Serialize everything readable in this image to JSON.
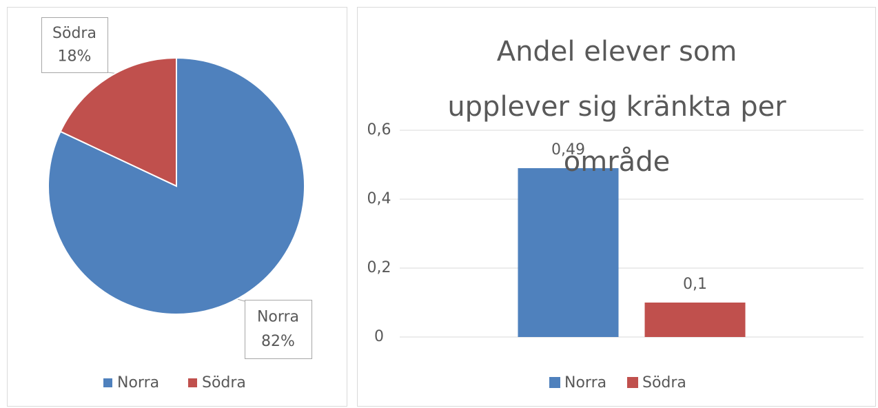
{
  "chart_data": [
    {
      "type": "pie",
      "categories": [
        "Norra",
        "Södra"
      ],
      "values": [
        82,
        18
      ],
      "value_labels": [
        "82%",
        "18%"
      ],
      "colors": [
        "#4f81bd",
        "#c0504d"
      ],
      "legend": "bottom"
    },
    {
      "type": "bar",
      "title": "Andel elever som upplever sig kränkta per område",
      "categories": [
        null
      ],
      "series": [
        {
          "name": "Norra",
          "color": "#4f81bd",
          "values": [
            0.49
          ],
          "value_labels": [
            "0,49"
          ]
        },
        {
          "name": "Södra",
          "color": "#c0504d",
          "values": [
            0.1
          ],
          "value_labels": [
            "0,1"
          ]
        }
      ],
      "ylim": [
        0,
        0.6
      ],
      "yticks": [
        0,
        {
          "value": 0.2,
          "label": "0,2"
        },
        {
          "value": 0.4,
          "label": "0,4"
        },
        {
          "value": 0.6,
          "label": "0,6"
        }
      ],
      "grid": true,
      "legend": "bottom"
    }
  ]
}
